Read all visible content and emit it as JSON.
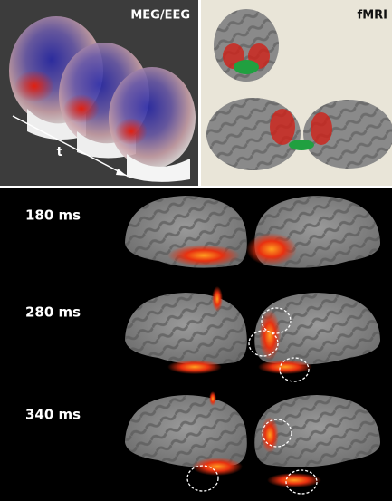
{
  "panels": {
    "meg_label": "MEG/EEG",
    "time_arrow_label": "t",
    "fmri_label": "fMRI"
  },
  "rows": [
    {
      "label": "180 ms"
    },
    {
      "label": "280 ms"
    },
    {
      "label": "340 ms"
    }
  ]
}
